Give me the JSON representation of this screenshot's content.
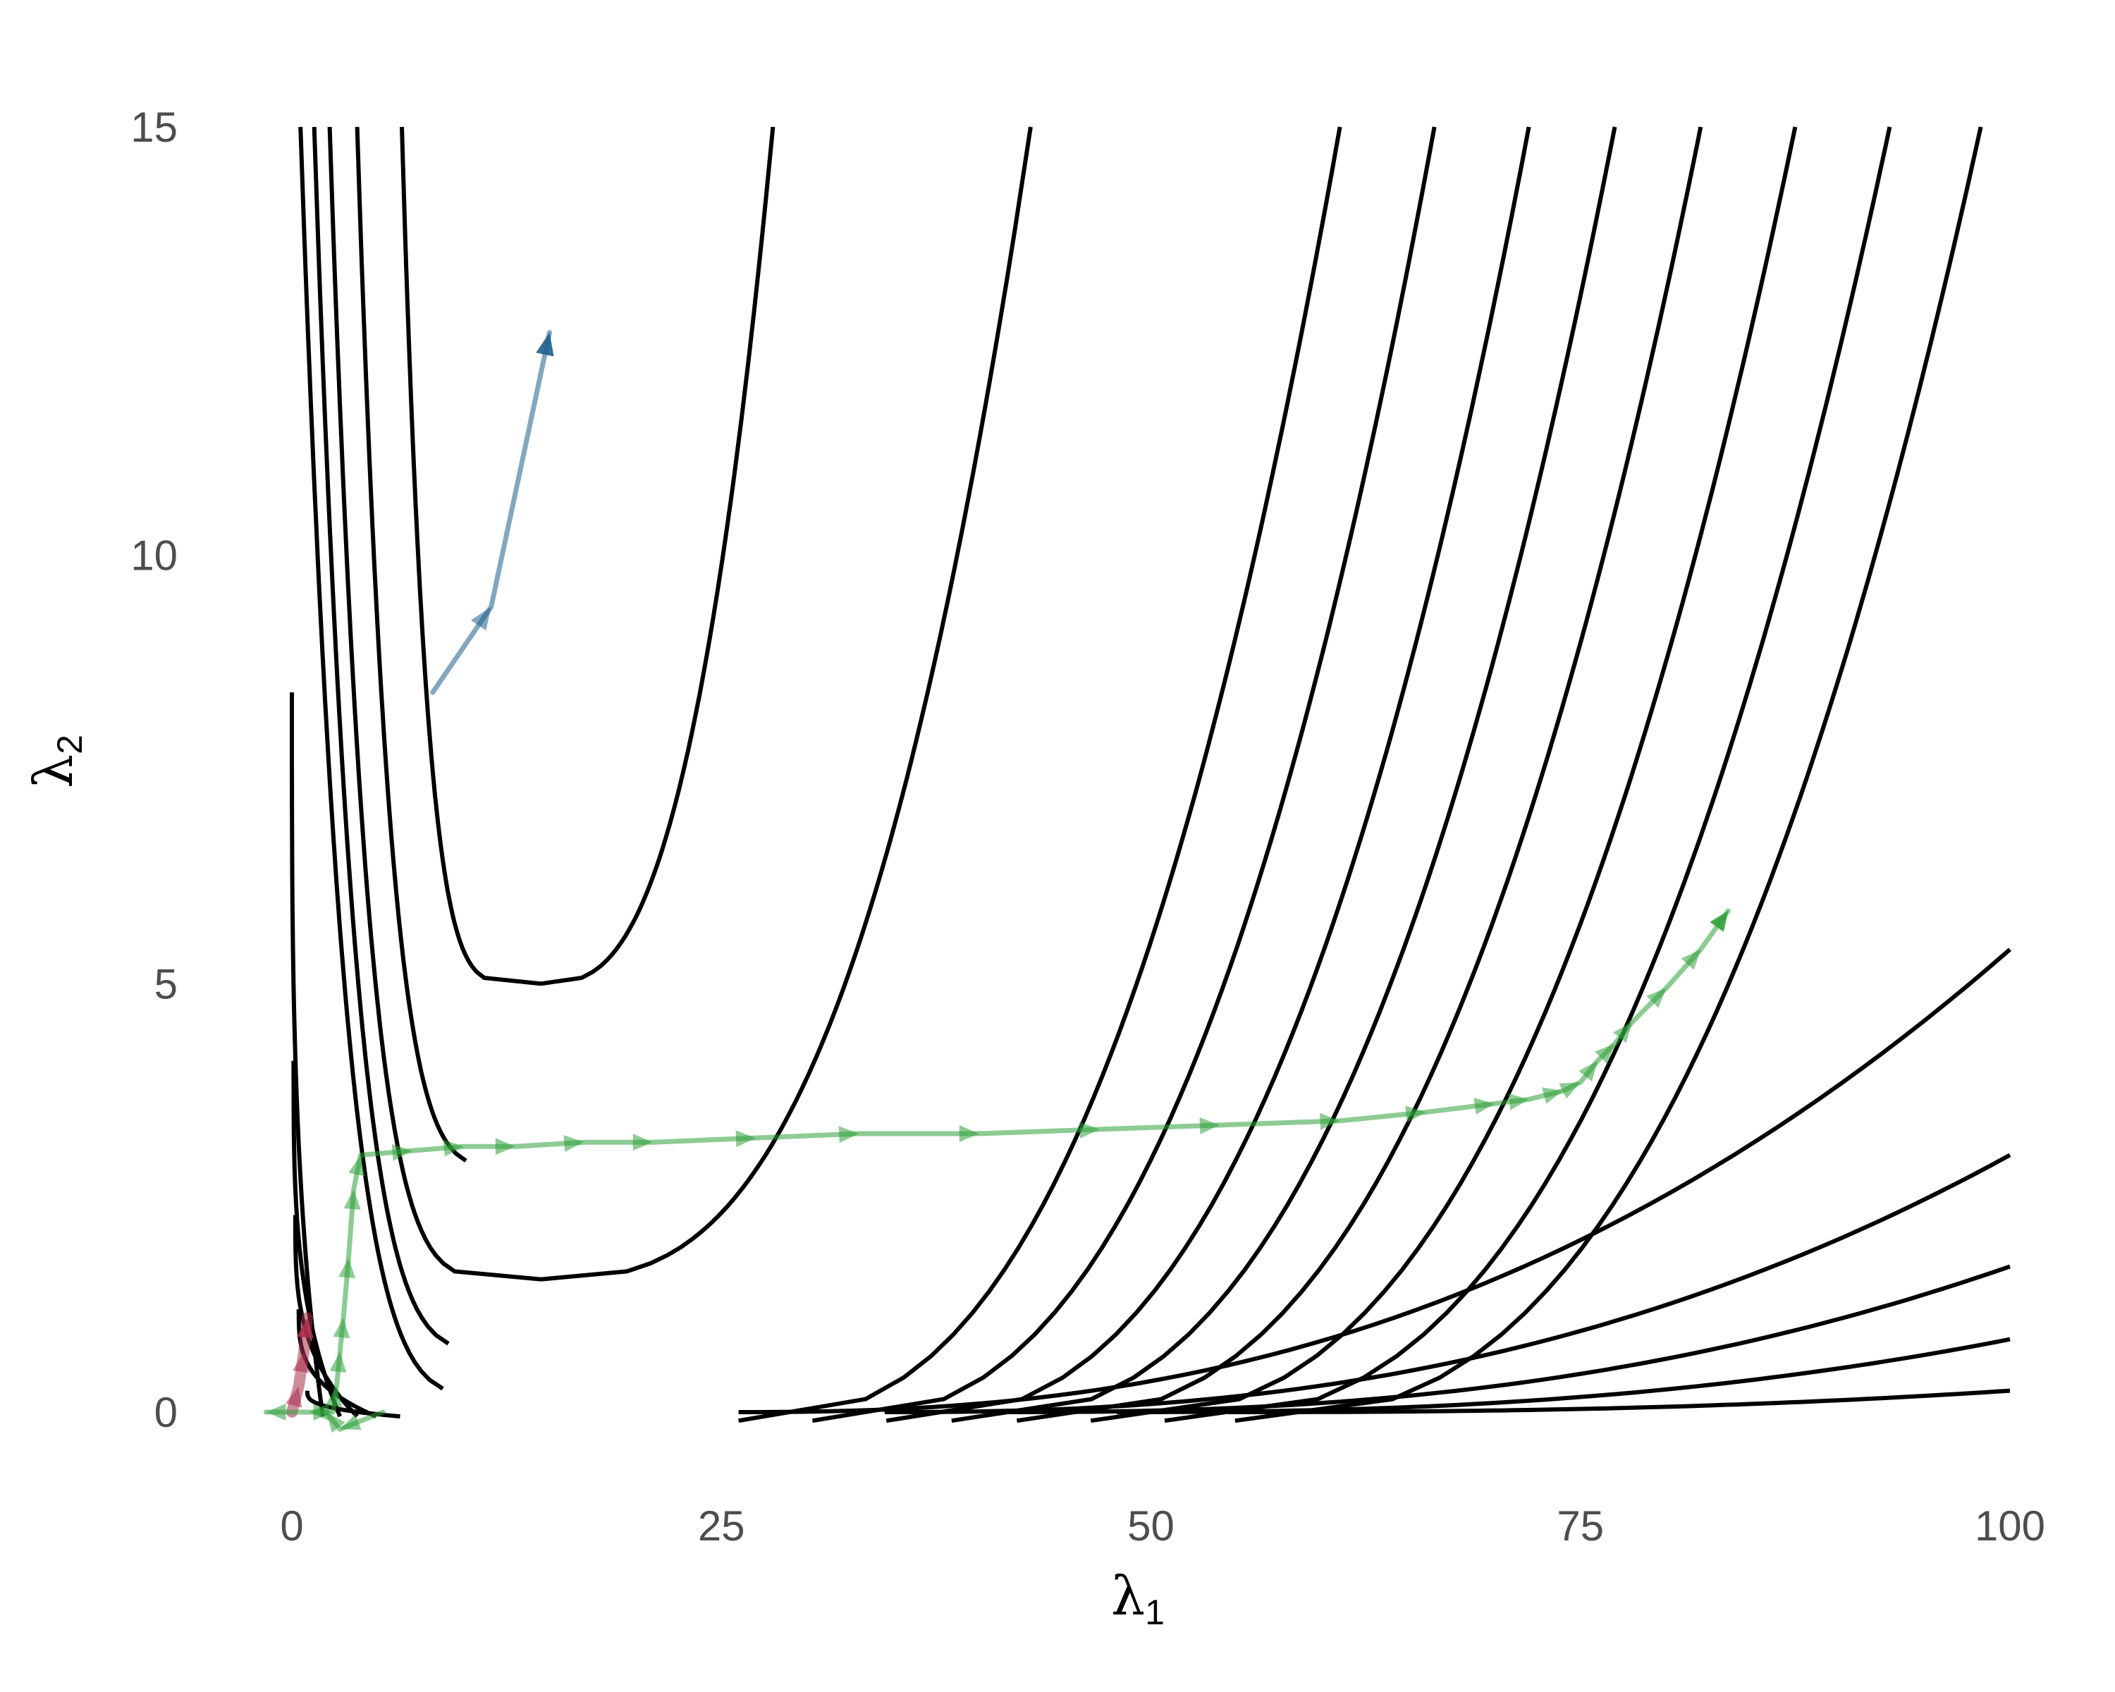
{
  "chart_data": {
    "type": "line",
    "title": "",
    "xlabel": "λ",
    "xlabel_sub": "1",
    "ylabel": "λ",
    "ylabel_sub": "2",
    "xlim": [
      -3,
      102
    ],
    "ylim": [
      -1.7,
      15.2
    ],
    "xticks": [
      0,
      25,
      50,
      75,
      100
    ],
    "yticks": [
      0,
      5,
      10,
      15
    ],
    "grid": false,
    "legend": "none",
    "contours": {
      "description_units": "Level curves of the form (x - 15)^2 / (x + 0.1)^2 * 1 + scaled quadratic in lambda2; drawn as a family of nested curves",
      "center": [
        14.5,
        0.0
      ],
      "inner_bowls": [
        {
          "xmin_left": 6.4,
          "y_bottom": 5.0,
          "x_right_top": 28.0
        },
        {
          "xmin_left": 3.8,
          "y_bottom": 2.85,
          "x_right_top": 36.0
        },
        {
          "xmin_left": 2.2,
          "y_bottom": 1.55,
          "x_right_top": 43.0
        },
        {
          "xmin_left": 1.3,
          "y_bottom": 0.7,
          "x_right_top": 49.0
        },
        {
          "xmin_left": 0.5,
          "y_bottom": 0.17,
          "x_right_top": 55.0
        }
      ],
      "outer_curves_right_tops": [
        61.0,
        66.5,
        72.0,
        77.0,
        82.0,
        87.5,
        93.0,
        98.3
      ],
      "lower_right_curves": [
        {
          "x_start": 26.0,
          "x_end": 100,
          "y_end": 5.4
        },
        {
          "x_start": 34.5,
          "x_end": 100,
          "y_end": 3.0
        },
        {
          "x_start": 41.5,
          "x_end": 100,
          "y_end": 1.7
        },
        {
          "x_start": 48.0,
          "x_end": 100,
          "y_end": 0.85
        },
        {
          "x_start": 54.5,
          "x_end": 100,
          "y_end": 0.25
        }
      ]
    },
    "series": [
      {
        "color": "#1f5f8b",
        "points": [
          [
            8.2,
            8.4
          ],
          [
            11.6,
            9.4
          ],
          [
            15.0,
            12.6
          ]
        ]
      },
      {
        "color": "#a8304a",
        "points": [
          [
            0.0,
            0.0
          ],
          [
            0.4,
            0.3
          ],
          [
            0.7,
            0.7
          ],
          [
            0.9,
            1.1
          ]
        ]
      },
      {
        "color": "#2fa03a",
        "points": [
          [
            5.3,
            0.0
          ],
          [
            2.8,
            -0.2
          ],
          [
            2.0,
            0.0
          ],
          [
            1.0,
            0.0
          ],
          [
            -1.5,
            0.0
          ],
          [
            2.4,
            0.0
          ],
          [
            2.6,
            0.3
          ],
          [
            2.8,
            0.7
          ],
          [
            3.0,
            1.1
          ],
          [
            3.3,
            1.8
          ],
          [
            3.6,
            2.6
          ],
          [
            4.0,
            3.0
          ],
          [
            7.0,
            3.05
          ],
          [
            10.0,
            3.1
          ],
          [
            13.0,
            3.1
          ],
          [
            17.0,
            3.15
          ],
          [
            21.0,
            3.15
          ],
          [
            27.0,
            3.2
          ],
          [
            33.0,
            3.25
          ],
          [
            40.0,
            3.25
          ],
          [
            47.0,
            3.3
          ],
          [
            54.0,
            3.35
          ],
          [
            61.0,
            3.4
          ],
          [
            66.0,
            3.5
          ],
          [
            70.0,
            3.6
          ],
          [
            72.0,
            3.65
          ],
          [
            74.0,
            3.75
          ],
          [
            75.0,
            3.85
          ],
          [
            76.0,
            4.1
          ],
          [
            77.0,
            4.3
          ],
          [
            78.0,
            4.55
          ],
          [
            80.0,
            4.95
          ],
          [
            82.0,
            5.4
          ],
          [
            83.6,
            5.85
          ]
        ]
      }
    ]
  }
}
